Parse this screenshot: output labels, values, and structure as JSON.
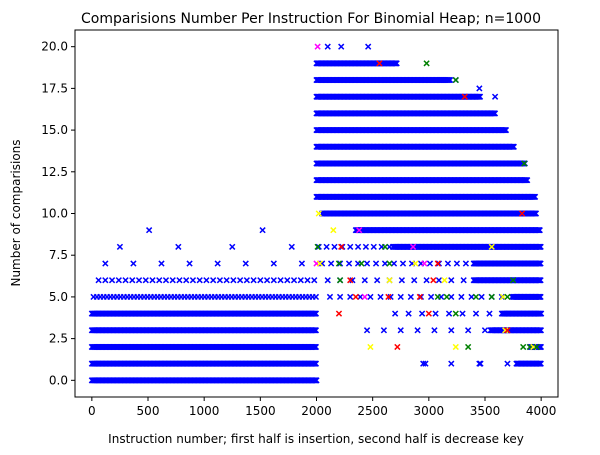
{
  "chart_data": {
    "type": "scatter",
    "title": "Comparisions Number Per Instruction For Binomial Heap; n=1000",
    "xlabel": "Instruction number; first half is insertion, second half is decrease key",
    "ylabel": "Number of comparisions",
    "xlim": [
      -150,
      4150
    ],
    "ylim": [
      -1.0,
      21.0
    ],
    "xticks": [
      0,
      500,
      1000,
      1500,
      2000,
      2500,
      3000,
      3500,
      4000
    ],
    "yticks": [
      0.0,
      2.5,
      5.0,
      7.5,
      10.0,
      12.5,
      15.0,
      17.5,
      20.0
    ],
    "ytick_labels": [
      "0.0",
      "2.5",
      "5.0",
      "7.5",
      "10.0",
      "12.5",
      "15.0",
      "17.5",
      "20.0"
    ],
    "marker": "x",
    "grid": false,
    "colors": {
      "blue": "#0000ff",
      "green": "#008000",
      "red": "#ff0000",
      "yellow": "#ffff00",
      "magenta": "#ff00ff",
      "orange": "#ffa500"
    },
    "insertion_phase": {
      "x_range": [
        0,
        2000
      ],
      "color": "blue",
      "dense_rows": [
        {
          "y": 0,
          "from": 0,
          "to": 2000
        },
        {
          "y": 1,
          "from": 0,
          "to": 2000
        },
        {
          "y": 2,
          "from": 0,
          "to": 2000
        },
        {
          "y": 3,
          "from": 0,
          "to": 2000
        },
        {
          "y": 4,
          "from": 0,
          "to": 2000
        }
      ],
      "sparse_rows": [
        {
          "y": 5,
          "from": 15,
          "to": 2000,
          "step": 30
        },
        {
          "y": 6,
          "from": 60,
          "to": 2000,
          "step": 60
        }
      ],
      "points": [
        {
          "x": 120,
          "y": 7
        },
        {
          "x": 370,
          "y": 7
        },
        {
          "x": 620,
          "y": 7
        },
        {
          "x": 870,
          "y": 7
        },
        {
          "x": 1120,
          "y": 7
        },
        {
          "x": 1370,
          "y": 7
        },
        {
          "x": 1620,
          "y": 7
        },
        {
          "x": 1870,
          "y": 7
        },
        {
          "x": 250,
          "y": 8
        },
        {
          "x": 770,
          "y": 8
        },
        {
          "x": 1250,
          "y": 8
        },
        {
          "x": 1780,
          "y": 8
        },
        {
          "x": 510,
          "y": 9
        },
        {
          "x": 1520,
          "y": 9
        }
      ]
    },
    "decrease_key_phase": {
      "x_range": [
        2000,
        4000
      ],
      "color": "blue",
      "dense_rows": [
        {
          "y": 0,
          "from": 2000,
          "to": 2000
        },
        {
          "y": 1,
          "from": 3780,
          "to": 4000
        },
        {
          "y": 2,
          "from": 3900,
          "to": 4000
        },
        {
          "y": 3,
          "from": 3550,
          "to": 4000
        },
        {
          "y": 4,
          "from": 3650,
          "to": 4000
        },
        {
          "y": 5,
          "from": 3750,
          "to": 4000
        },
        {
          "y": 6,
          "from": 3400,
          "to": 4000
        },
        {
          "y": 7,
          "from": 3400,
          "to": 4000
        },
        {
          "y": 8,
          "from": 2680,
          "to": 4000
        },
        {
          "y": 9,
          "from": 2350,
          "to": 3990
        },
        {
          "y": 10,
          "from": 2050,
          "to": 3960
        },
        {
          "y": 11,
          "from": 2000,
          "to": 3950
        },
        {
          "y": 12,
          "from": 2000,
          "to": 3880
        },
        {
          "y": 13,
          "from": 2000,
          "to": 3860
        },
        {
          "y": 14,
          "from": 2000,
          "to": 3760
        },
        {
          "y": 15,
          "from": 2000,
          "to": 3690
        },
        {
          "y": 16,
          "from": 2000,
          "to": 3590
        },
        {
          "y": 17,
          "from": 2000,
          "to": 3460
        },
        {
          "y": 18,
          "from": 2000,
          "to": 3190
        },
        {
          "y": 19,
          "from": 2000,
          "to": 2720
        }
      ],
      "sparse_rows": [
        {
          "y": 8,
          "from": 2020,
          "to": 2680,
          "step": 70
        },
        {
          "y": 7,
          "from": 2050,
          "to": 3400,
          "step": 80
        },
        {
          "y": 6,
          "from": 2100,
          "to": 3400,
          "step": 110
        },
        {
          "y": 5,
          "from": 2120,
          "to": 3750,
          "step": 90
        },
        {
          "y": 4,
          "from": 2700,
          "to": 3650,
          "step": 120
        },
        {
          "y": 3,
          "from": 2450,
          "to": 3550,
          "step": 150
        },
        {
          "y": 1,
          "from": 2950,
          "to": 3780,
          "step": 250
        }
      ],
      "points": [
        {
          "x": 2100,
          "y": 20
        },
        {
          "x": 2220,
          "y": 20
        },
        {
          "x": 2460,
          "y": 20
        },
        {
          "x": 2970,
          "y": 1
        },
        {
          "x": 3460,
          "y": 1
        },
        {
          "x": 3110,
          "y": 18
        },
        {
          "x": 3240,
          "y": 18
        },
        {
          "x": 3450,
          "y": 17.5
        },
        {
          "x": 3590,
          "y": 17
        }
      ],
      "colored_points": [
        {
          "x": 2010,
          "y": 20,
          "c": "magenta"
        },
        {
          "x": 2980,
          "y": 19,
          "c": "green"
        },
        {
          "x": 2560,
          "y": 19,
          "c": "red"
        },
        {
          "x": 3240,
          "y": 18,
          "c": "green"
        },
        {
          "x": 3320,
          "y": 17,
          "c": "red"
        },
        {
          "x": 3850,
          "y": 13,
          "c": "green"
        },
        {
          "x": 3830,
          "y": 10,
          "c": "red"
        },
        {
          "x": 2020,
          "y": 10,
          "c": "yellow"
        },
        {
          "x": 2150,
          "y": 9,
          "c": "yellow"
        },
        {
          "x": 2380,
          "y": 9,
          "c": "magenta"
        },
        {
          "x": 2010,
          "y": 8,
          "c": "green"
        },
        {
          "x": 2220,
          "y": 8,
          "c": "red"
        },
        {
          "x": 2610,
          "y": 8,
          "c": "green"
        },
        {
          "x": 2860,
          "y": 8,
          "c": "magenta"
        },
        {
          "x": 3560,
          "y": 8,
          "c": "yellow"
        },
        {
          "x": 2000,
          "y": 7,
          "c": "magenta"
        },
        {
          "x": 2030,
          "y": 7,
          "c": "yellow"
        },
        {
          "x": 2200,
          "y": 7,
          "c": "green"
        },
        {
          "x": 2400,
          "y": 7,
          "c": "green"
        },
        {
          "x": 2650,
          "y": 7,
          "c": "green"
        },
        {
          "x": 2880,
          "y": 7,
          "c": "yellow"
        },
        {
          "x": 2960,
          "y": 7,
          "c": "magenta"
        },
        {
          "x": 3080,
          "y": 7,
          "c": "red"
        },
        {
          "x": 2210,
          "y": 6,
          "c": "green"
        },
        {
          "x": 2300,
          "y": 6,
          "c": "red"
        },
        {
          "x": 2650,
          "y": 6,
          "c": "yellow"
        },
        {
          "x": 3040,
          "y": 6,
          "c": "red"
        },
        {
          "x": 3140,
          "y": 6,
          "c": "yellow"
        },
        {
          "x": 3750,
          "y": 6,
          "c": "green"
        },
        {
          "x": 2350,
          "y": 5,
          "c": "red"
        },
        {
          "x": 2430,
          "y": 5,
          "c": "magenta"
        },
        {
          "x": 2640,
          "y": 5,
          "c": "red"
        },
        {
          "x": 2920,
          "y": 5,
          "c": "red"
        },
        {
          "x": 3080,
          "y": 5,
          "c": "green"
        },
        {
          "x": 3160,
          "y": 5,
          "c": "green"
        },
        {
          "x": 3420,
          "y": 5,
          "c": "green"
        },
        {
          "x": 3560,
          "y": 5,
          "c": "green"
        },
        {
          "x": 3660,
          "y": 5,
          "c": "yellow"
        },
        {
          "x": 3700,
          "y": 5,
          "c": "green"
        },
        {
          "x": 2200,
          "y": 4,
          "c": "red"
        },
        {
          "x": 3000,
          "y": 4,
          "c": "red"
        },
        {
          "x": 3240,
          "y": 4,
          "c": "green"
        },
        {
          "x": 2480,
          "y": 2,
          "c": "yellow"
        },
        {
          "x": 2720,
          "y": 2,
          "c": "red"
        },
        {
          "x": 3240,
          "y": 2,
          "c": "yellow"
        },
        {
          "x": 3350,
          "y": 2,
          "c": "green"
        },
        {
          "x": 3840,
          "y": 2,
          "c": "green"
        },
        {
          "x": 3900,
          "y": 2,
          "c": "green"
        },
        {
          "x": 3930,
          "y": 2,
          "c": "yellow"
        },
        {
          "x": 3960,
          "y": 2,
          "c": "green"
        },
        {
          "x": 3680,
          "y": 3,
          "c": "yellow"
        },
        {
          "x": 3700,
          "y": 3,
          "c": "red"
        }
      ]
    }
  }
}
